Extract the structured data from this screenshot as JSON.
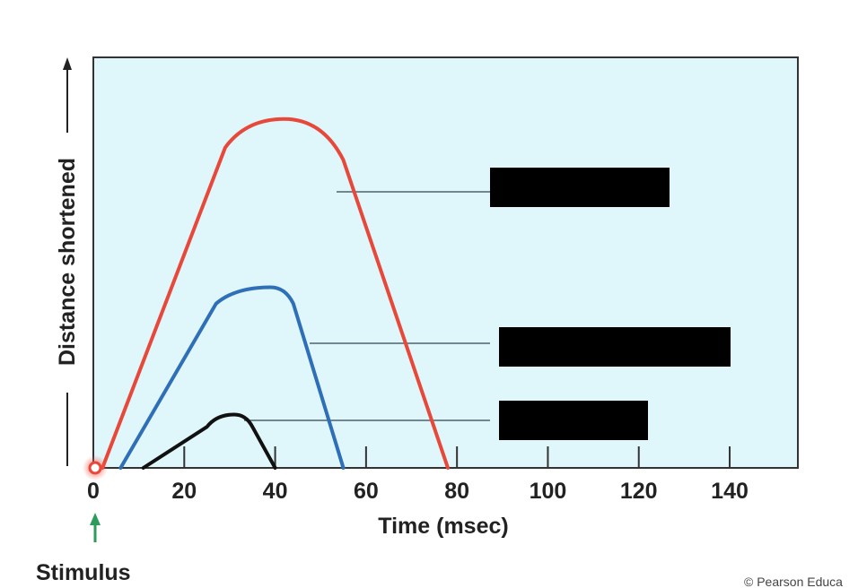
{
  "chart_data": {
    "type": "line",
    "title": "",
    "xlabel": "Time (msec)",
    "ylabel": "Distance shortened",
    "xlim": [
      0,
      155
    ],
    "ylim": [
      0,
      100
    ],
    "x_ticks": [
      0,
      20,
      40,
      60,
      80,
      100,
      120,
      140
    ],
    "grid": false,
    "series": [
      {
        "name": "red-curve",
        "color": "#e8483a",
        "points": [
          [
            2,
            0
          ],
          [
            29,
            78
          ],
          [
            42,
            85
          ],
          [
            55,
            75
          ],
          [
            78,
            0
          ]
        ],
        "label_box": ""
      },
      {
        "name": "blue-curve",
        "color": "#2f6fb8",
        "points": [
          [
            6,
            0
          ],
          [
            27,
            40
          ],
          [
            39,
            44
          ],
          [
            44,
            40
          ],
          [
            55,
            0
          ]
        ],
        "label_box": ""
      },
      {
        "name": "black-curve",
        "color": "#111111",
        "points": [
          [
            11,
            0
          ],
          [
            25,
            10
          ],
          [
            31,
            13
          ],
          [
            35,
            10
          ],
          [
            40,
            0
          ]
        ],
        "label_box": ""
      }
    ],
    "annotations": {
      "stimulus_label": "Stimulus",
      "stimulus_time": 0
    },
    "plot_background": "#dff6fb"
  },
  "footer": {
    "copyright": "© Pearson Educa"
  }
}
